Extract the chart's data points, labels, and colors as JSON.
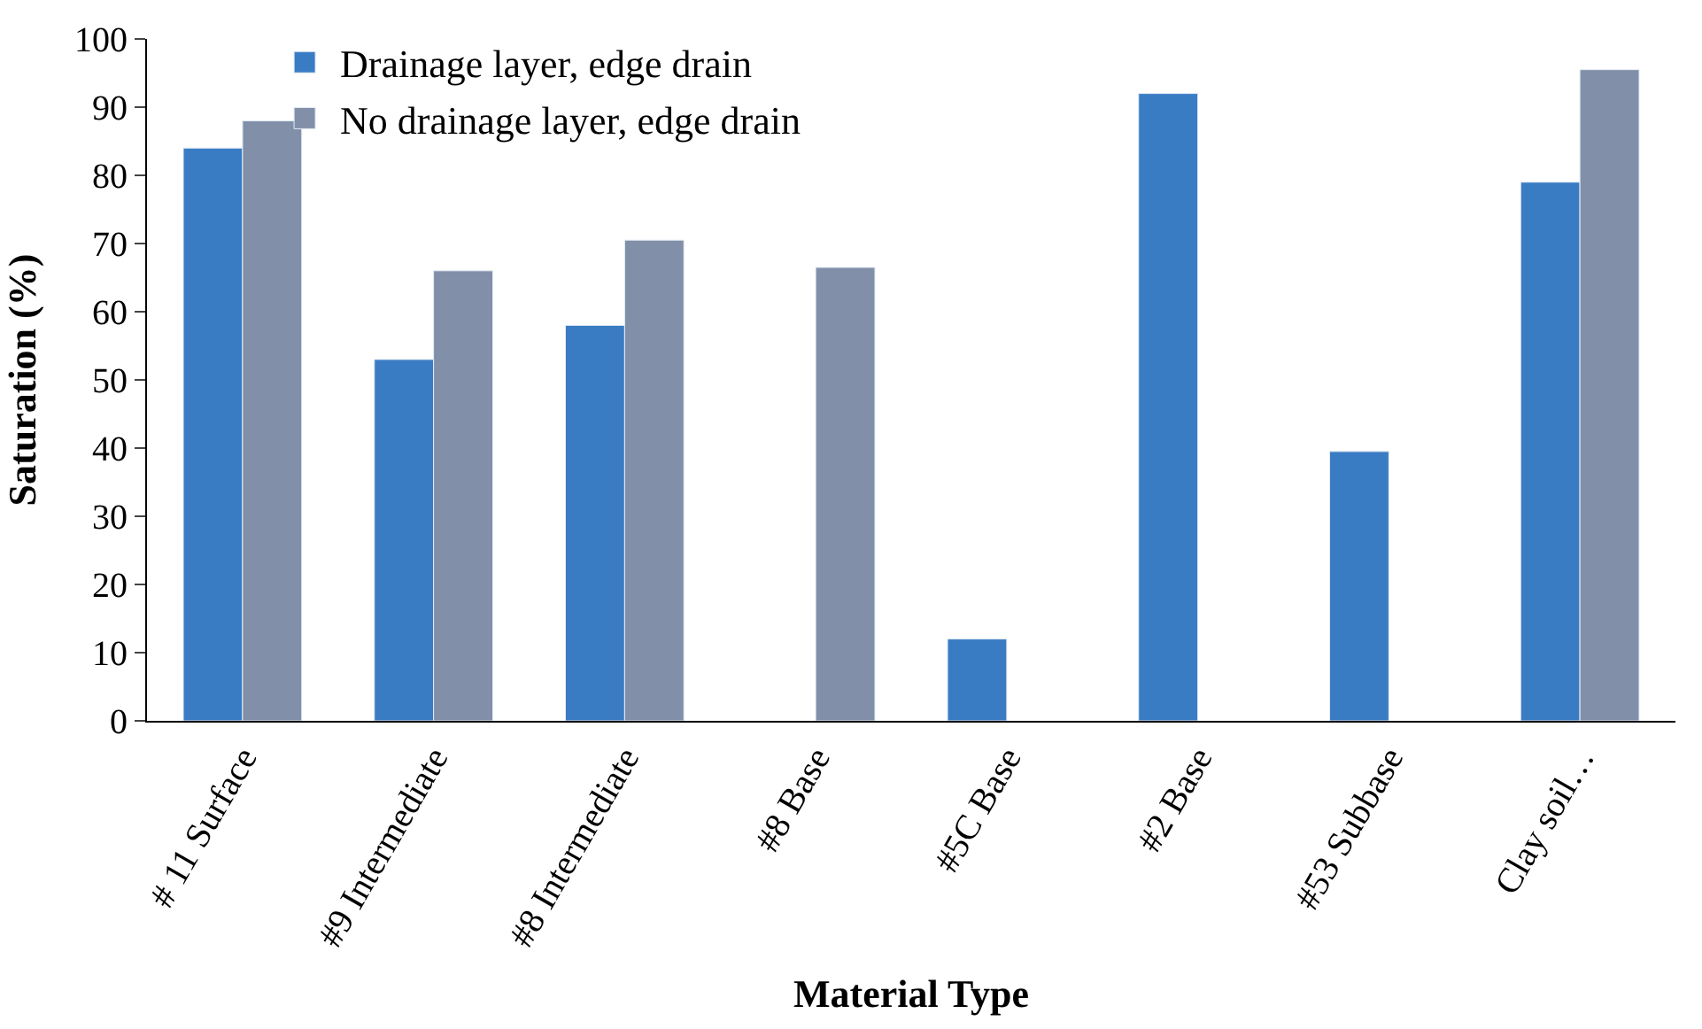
{
  "chart_data": {
    "type": "bar",
    "xlabel": "Material Type",
    "ylabel": "Saturation (%)",
    "categories": [
      "# 11 Surface",
      "#9 Intermediate",
      "#8 Intermediate",
      "#8 Base",
      "#5C Base",
      "#2 Base",
      "#53 Subbase",
      "Clay soil…"
    ],
    "series": [
      {
        "name": "Drainage layer, edge drain",
        "color": "#3a7cc4",
        "values": [
          84,
          53,
          58,
          null,
          12,
          92,
          39.5,
          79
        ]
      },
      {
        "name": "No drainage layer, edge drain",
        "color": "#8190a8",
        "values": [
          88,
          66,
          70.5,
          66.5,
          null,
          null,
          null,
          95.5
        ]
      }
    ],
    "ylim": [
      0,
      100
    ],
    "yticks": [
      0,
      10,
      20,
      30,
      40,
      50,
      60,
      70,
      80,
      90,
      100
    ],
    "grid": false,
    "legend": "top left"
  }
}
